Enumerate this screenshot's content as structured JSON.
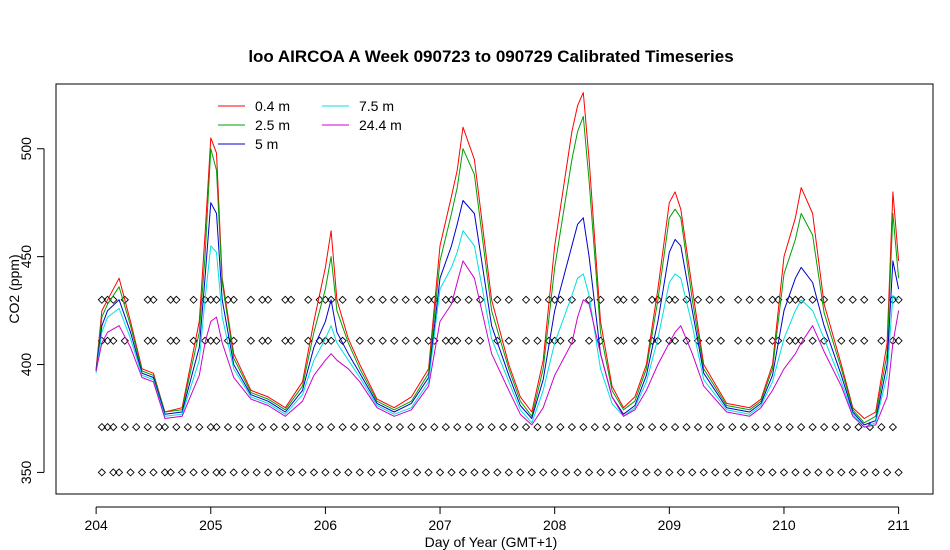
{
  "chart_data": {
    "type": "line",
    "title": "loo AIRCOA A  Week 090723 to 090729  Calibrated Timeseries",
    "xlabel": "Day of Year (GMT+1)",
    "ylabel": "CO2 (ppm)",
    "xlim": [
      203.65,
      211.3
    ],
    "ylim": [
      340,
      530
    ],
    "x_ticks": [
      204,
      205,
      206,
      207,
      208,
      209,
      210,
      211
    ],
    "y_ticks": [
      350,
      400,
      450,
      500
    ],
    "grid": false,
    "legend_position": "top-left",
    "series": [
      {
        "name": "0.4 m",
        "color": "#ff0000",
        "x": [
          204.0,
          204.05,
          204.1,
          204.2,
          204.3,
          204.4,
          204.5,
          204.6,
          204.75,
          204.9,
          204.95,
          205.0,
          205.05,
          205.1,
          205.2,
          205.35,
          205.5,
          205.65,
          205.8,
          205.9,
          206.0,
          206.05,
          206.1,
          206.2,
          206.3,
          206.45,
          206.6,
          206.75,
          206.9,
          207.0,
          207.1,
          207.15,
          207.2,
          207.3,
          207.45,
          207.6,
          207.7,
          207.8,
          207.9,
          208.0,
          208.15,
          208.2,
          208.25,
          208.3,
          208.4,
          208.5,
          208.6,
          208.7,
          208.8,
          208.9,
          209.0,
          209.05,
          209.1,
          209.2,
          209.3,
          209.5,
          209.7,
          209.8,
          209.9,
          210.0,
          210.1,
          210.15,
          210.25,
          210.35,
          210.5,
          210.6,
          210.7,
          210.8,
          210.9,
          210.95,
          211.0
        ],
        "y": [
          398,
          425,
          430,
          440,
          420,
          398,
          396,
          378,
          380,
          420,
          460,
          505,
          498,
          440,
          405,
          388,
          385,
          380,
          392,
          420,
          445,
          462,
          430,
          412,
          400,
          384,
          380,
          385,
          398,
          455,
          478,
          490,
          510,
          495,
          430,
          400,
          385,
          378,
          402,
          455,
          508,
          520,
          526,
          495,
          420,
          390,
          380,
          385,
          400,
          435,
          475,
          480,
          472,
          435,
          400,
          382,
          380,
          384,
          400,
          450,
          468,
          482,
          470,
          428,
          400,
          380,
          375,
          378,
          410,
          480,
          448
        ]
      },
      {
        "name": "2.5 m",
        "color": "#00a000",
        "x": [
          204.0,
          204.05,
          204.1,
          204.2,
          204.3,
          204.4,
          204.5,
          204.6,
          204.75,
          204.9,
          204.95,
          205.0,
          205.05,
          205.1,
          205.2,
          205.35,
          205.5,
          205.65,
          205.8,
          205.9,
          206.0,
          206.05,
          206.1,
          206.2,
          206.3,
          206.45,
          206.6,
          206.75,
          206.9,
          207.0,
          207.1,
          207.15,
          207.2,
          207.3,
          207.45,
          207.6,
          207.7,
          207.8,
          207.9,
          208.0,
          208.15,
          208.2,
          208.25,
          208.3,
          208.4,
          208.5,
          208.6,
          208.7,
          208.8,
          208.9,
          209.0,
          209.05,
          209.1,
          209.2,
          209.3,
          209.5,
          209.7,
          209.8,
          209.9,
          210.0,
          210.1,
          210.15,
          210.25,
          210.35,
          210.5,
          210.6,
          210.7,
          210.8,
          210.9,
          210.95,
          211.0
        ],
        "y": [
          397,
          422,
          428,
          436,
          418,
          397,
          395,
          378,
          379,
          415,
          450,
          500,
          490,
          438,
          403,
          387,
          384,
          379,
          390,
          415,
          435,
          450,
          425,
          410,
          398,
          383,
          379,
          383,
          396,
          448,
          470,
          482,
          500,
          488,
          425,
          398,
          383,
          376,
          398,
          445,
          495,
          508,
          515,
          485,
          415,
          388,
          379,
          383,
          398,
          430,
          468,
          472,
          468,
          430,
          398,
          381,
          379,
          383,
          398,
          442,
          458,
          470,
          460,
          424,
          398,
          379,
          373,
          376,
          405,
          470,
          440
        ]
      },
      {
        "name": "5 m",
        "color": "#0000cc",
        "x": [
          204.0,
          204.05,
          204.1,
          204.2,
          204.3,
          204.4,
          204.5,
          204.6,
          204.75,
          204.9,
          204.95,
          205.0,
          205.05,
          205.1,
          205.2,
          205.35,
          205.5,
          205.65,
          205.8,
          205.9,
          206.0,
          206.05,
          206.1,
          206.2,
          206.3,
          206.45,
          206.6,
          206.75,
          206.9,
          207.0,
          207.1,
          207.15,
          207.2,
          207.3,
          207.45,
          207.6,
          207.7,
          207.8,
          207.9,
          208.0,
          208.15,
          208.2,
          208.25,
          208.3,
          208.4,
          208.5,
          208.6,
          208.7,
          208.8,
          208.9,
          209.0,
          209.05,
          209.1,
          209.2,
          209.3,
          209.5,
          209.7,
          209.8,
          209.9,
          210.0,
          210.1,
          210.15,
          210.25,
          210.35,
          210.5,
          210.6,
          210.7,
          210.8,
          210.9,
          210.95,
          211.0
        ],
        "y": [
          397,
          418,
          425,
          430,
          415,
          396,
          394,
          377,
          378,
          408,
          440,
          475,
          470,
          430,
          400,
          386,
          383,
          378,
          388,
          408,
          420,
          430,
          415,
          405,
          396,
          382,
          378,
          382,
          394,
          440,
          455,
          465,
          476,
          470,
          418,
          395,
          381,
          375,
          393,
          425,
          455,
          465,
          468,
          450,
          405,
          385,
          377,
          381,
          395,
          420,
          452,
          458,
          455,
          425,
          396,
          380,
          378,
          382,
          395,
          425,
          440,
          445,
          438,
          418,
          395,
          378,
          372,
          374,
          400,
          448,
          435
        ]
      },
      {
        "name": "7.5 m",
        "color": "#00e0e0",
        "x": [
          204.0,
          204.05,
          204.1,
          204.2,
          204.3,
          204.4,
          204.5,
          204.6,
          204.75,
          204.9,
          204.95,
          205.0,
          205.05,
          205.1,
          205.2,
          205.35,
          205.5,
          205.65,
          205.8,
          205.9,
          206.0,
          206.05,
          206.1,
          206.2,
          206.3,
          206.45,
          206.6,
          206.75,
          206.9,
          207.0,
          207.1,
          207.15,
          207.2,
          207.3,
          207.45,
          207.6,
          207.7,
          207.8,
          207.9,
          208.0,
          208.15,
          208.2,
          208.25,
          208.3,
          208.4,
          208.5,
          208.6,
          208.7,
          208.8,
          208.9,
          209.0,
          209.05,
          209.1,
          209.2,
          209.3,
          209.5,
          209.7,
          209.8,
          209.9,
          210.0,
          210.1,
          210.15,
          210.25,
          210.35,
          210.5,
          210.6,
          210.7,
          210.8,
          210.9,
          210.95,
          211.0
        ],
        "y": [
          396,
          415,
          422,
          426,
          412,
          395,
          393,
          376,
          377,
          402,
          430,
          455,
          452,
          422,
          398,
          385,
          382,
          377,
          386,
          402,
          412,
          418,
          410,
          402,
          394,
          381,
          377,
          380,
          392,
          435,
          445,
          452,
          462,
          455,
          412,
          392,
          379,
          373,
          388,
          410,
          432,
          440,
          442,
          432,
          398,
          382,
          376,
          380,
          392,
          412,
          438,
          442,
          440,
          418,
          393,
          379,
          377,
          381,
          392,
          412,
          425,
          430,
          425,
          412,
          392,
          377,
          371,
          373,
          395,
          432,
          430
        ]
      },
      {
        "name": "24.4 m",
        "color": "#cc00cc",
        "x": [
          204.0,
          204.05,
          204.1,
          204.2,
          204.3,
          204.4,
          204.5,
          204.6,
          204.75,
          204.9,
          204.95,
          205.0,
          205.05,
          205.1,
          205.2,
          205.35,
          205.5,
          205.65,
          205.8,
          205.9,
          206.0,
          206.05,
          206.1,
          206.2,
          206.3,
          206.45,
          206.6,
          206.75,
          206.9,
          207.0,
          207.1,
          207.15,
          207.2,
          207.3,
          207.45,
          207.6,
          207.7,
          207.8,
          207.9,
          208.0,
          208.15,
          208.2,
          208.25,
          208.3,
          208.4,
          208.5,
          208.6,
          208.7,
          208.8,
          208.9,
          209.0,
          209.05,
          209.1,
          209.2,
          209.3,
          209.5,
          209.7,
          209.8,
          209.9,
          210.0,
          210.1,
          210.15,
          210.25,
          210.35,
          210.5,
          210.6,
          210.7,
          210.8,
          210.9,
          210.95,
          211.0
        ],
        "y": [
          397,
          410,
          415,
          418,
          408,
          394,
          392,
          375,
          376,
          395,
          410,
          420,
          422,
          410,
          394,
          384,
          381,
          376,
          383,
          395,
          402,
          405,
          402,
          398,
          392,
          380,
          376,
          379,
          390,
          420,
          428,
          438,
          448,
          440,
          405,
          388,
          377,
          372,
          380,
          395,
          410,
          422,
          430,
          428,
          405,
          385,
          376,
          379,
          388,
          400,
          410,
          415,
          418,
          405,
          390,
          378,
          376,
          380,
          388,
          398,
          405,
          410,
          418,
          406,
          390,
          376,
          371,
          372,
          385,
          410,
          425
        ]
      }
    ],
    "marker_rows": [
      {
        "name": "upper-flag-row",
        "y": 430,
        "x": [
          204.05,
          204.1,
          204.15,
          204.25,
          204.45,
          204.5,
          204.65,
          204.7,
          204.85,
          204.95,
          205.0,
          205.05,
          205.15,
          205.2,
          205.35,
          205.45,
          205.5,
          205.65,
          205.7,
          205.85,
          205.95,
          206.0,
          206.05,
          206.15,
          206.3,
          206.4,
          206.5,
          206.6,
          206.7,
          206.8,
          206.9,
          206.95,
          207.05,
          207.1,
          207.15,
          207.25,
          207.35,
          207.5,
          207.6,
          207.75,
          207.85,
          207.95,
          208.0,
          208.05,
          208.15,
          208.3,
          208.4,
          208.55,
          208.6,
          208.7,
          208.85,
          208.9,
          209.0,
          209.05,
          209.15,
          209.25,
          209.35,
          209.45,
          209.6,
          209.7,
          209.8,
          209.9,
          209.95,
          210.05,
          210.1,
          210.15,
          210.25,
          210.35,
          210.5,
          210.6,
          210.7,
          210.85,
          210.95,
          211.0
        ]
      },
      {
        "name": "mid-flag-row",
        "y": 411,
        "x": [
          204.05,
          204.1,
          204.15,
          204.25,
          204.45,
          204.5,
          204.65,
          204.7,
          204.85,
          204.95,
          205.0,
          205.05,
          205.15,
          205.2,
          205.35,
          205.45,
          205.5,
          205.65,
          205.7,
          205.85,
          205.95,
          206.0,
          206.05,
          206.15,
          206.3,
          206.4,
          206.5,
          206.6,
          206.7,
          206.8,
          206.9,
          206.95,
          207.05,
          207.1,
          207.15,
          207.25,
          207.35,
          207.5,
          207.6,
          207.75,
          207.85,
          207.95,
          208.0,
          208.05,
          208.15,
          208.3,
          208.4,
          208.55,
          208.6,
          208.7,
          208.85,
          208.9,
          209.0,
          209.05,
          209.15,
          209.25,
          209.35,
          209.45,
          209.6,
          209.7,
          209.8,
          209.9,
          209.95,
          210.05,
          210.1,
          210.15,
          210.25,
          210.35,
          210.5,
          210.6,
          210.7,
          210.85,
          210.95,
          211.0
        ]
      },
      {
        "name": "lower-flag-row",
        "y": 371,
        "x": [
          204.05,
          204.1,
          204.15,
          204.25,
          204.35,
          204.45,
          204.55,
          204.6,
          204.7,
          204.8,
          204.9,
          205.0,
          205.05,
          205.15,
          205.25,
          205.35,
          205.45,
          205.55,
          205.65,
          205.75,
          205.85,
          205.95,
          206.05,
          206.15,
          206.25,
          206.35,
          206.45,
          206.55,
          206.65,
          206.75,
          206.85,
          206.95,
          207.05,
          207.15,
          207.25,
          207.35,
          207.45,
          207.55,
          207.65,
          207.75,
          207.85,
          207.95,
          208.05,
          208.15,
          208.25,
          208.35,
          208.45,
          208.55,
          208.65,
          208.75,
          208.85,
          208.95,
          209.05,
          209.15,
          209.25,
          209.35,
          209.45,
          209.55,
          209.65,
          209.75,
          209.85,
          209.95,
          210.05,
          210.15,
          210.25,
          210.35,
          210.45,
          210.55,
          210.65,
          210.75,
          210.85,
          210.95
        ]
      },
      {
        "name": "bottom-flag-row",
        "y": 350,
        "x": [
          204.05,
          204.15,
          204.2,
          204.3,
          204.4,
          204.5,
          204.6,
          204.65,
          204.75,
          204.85,
          204.95,
          205.05,
          205.1,
          205.2,
          205.3,
          205.4,
          205.5,
          205.6,
          205.7,
          205.8,
          205.9,
          206.0,
          206.1,
          206.2,
          206.3,
          206.4,
          206.5,
          206.6,
          206.7,
          206.8,
          206.9,
          207.0,
          207.1,
          207.2,
          207.3,
          207.4,
          207.5,
          207.6,
          207.7,
          207.8,
          207.9,
          208.0,
          208.1,
          208.2,
          208.3,
          208.4,
          208.5,
          208.6,
          208.7,
          208.8,
          208.9,
          209.0,
          209.1,
          209.2,
          209.3,
          209.4,
          209.5,
          209.6,
          209.7,
          209.8,
          209.9,
          210.0,
          210.1,
          210.2,
          210.3,
          210.4,
          210.5,
          210.6,
          210.7,
          210.8,
          210.9,
          211.0
        ]
      }
    ]
  }
}
